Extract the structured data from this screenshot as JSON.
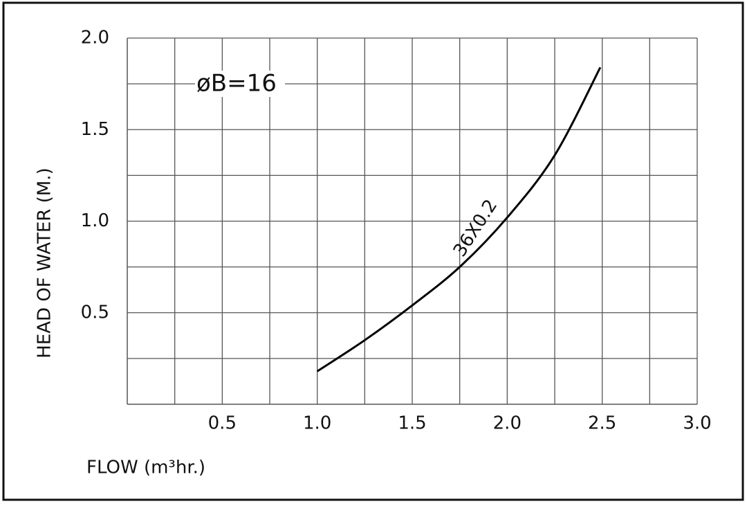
{
  "chart_data": {
    "type": "line",
    "x_label": "FLOW (m³hr.)",
    "y_label": "HEAD OF WATER (M.)",
    "annotations": [
      "øB=16",
      "36X0.2"
    ],
    "series": [
      {
        "color": "#000000",
        "x": [
          1.0,
          1.25,
          1.5,
          1.75,
          2.0,
          2.25,
          2.49
        ],
        "values": [
          0.18,
          0.35,
          0.54,
          0.75,
          1.02,
          1.36,
          1.84
        ]
      }
    ],
    "xlim": [
      0,
      3.0
    ],
    "xticks": [
      0.5,
      {
        "value": 1,
        "label": "1.0"
      },
      1.5,
      {
        "value": 2,
        "label": "2.0"
      },
      2.5,
      {
        "value": 3,
        "label": "3.0"
      }
    ],
    "ylim": [
      0,
      2.0
    ],
    "yticks": [
      0.5,
      {
        "value": 1,
        "label": "1.0"
      },
      1.5,
      {
        "value": 2,
        "label": "2.0"
      }
    ],
    "grid": true
  }
}
